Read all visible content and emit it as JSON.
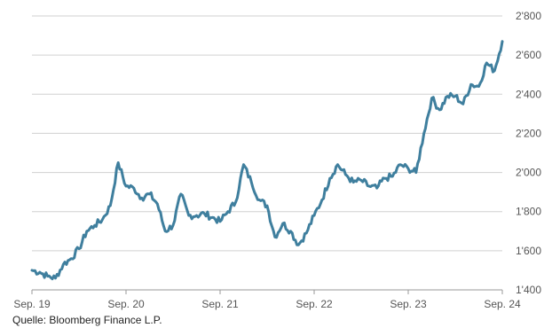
{
  "chart_data": {
    "type": "line",
    "title": "",
    "xlabel": "",
    "ylabel": "",
    "x_tick_labels": [
      "Sep. 19",
      "Sep. 20",
      "Sep. 21",
      "Sep. 22",
      "Sep. 23",
      "Sep. 24"
    ],
    "y_tick_labels": [
      "1'400",
      "1'600",
      "1'800",
      "2'000",
      "2'200",
      "2'400",
      "2'600",
      "2'800"
    ],
    "ylim": [
      1400,
      2800
    ],
    "y_axis_side": "right",
    "grid": "horizontal",
    "line_color": "#3f7f9e",
    "series": [
      {
        "x": [
          "2019-09",
          "2019-10",
          "2019-11",
          "2019-12",
          "2020-01",
          "2020-02",
          "2020-03",
          "2020-04",
          "2020-05",
          "2020-06",
          "2020-07",
          "2020-08",
          "2020-09",
          "2020-10",
          "2020-11",
          "2020-12",
          "2021-01",
          "2021-02",
          "2021-03",
          "2021-04",
          "2021-05",
          "2021-06",
          "2021-07",
          "2021-08",
          "2021-09",
          "2021-10",
          "2021-11",
          "2021-12",
          "2022-01",
          "2022-02",
          "2022-03",
          "2022-04",
          "2022-05",
          "2022-06",
          "2022-07",
          "2022-08",
          "2022-09",
          "2022-10",
          "2022-11",
          "2022-12",
          "2023-01",
          "2023-02",
          "2023-03",
          "2023-04",
          "2023-05",
          "2023-06",
          "2023-07",
          "2023-08",
          "2023-09",
          "2023-10",
          "2023-11",
          "2023-12",
          "2024-01",
          "2024-02",
          "2024-03",
          "2024-04",
          "2024-05",
          "2024-06",
          "2024-07",
          "2024-08",
          "2024-09"
        ],
        "values": [
          1500,
          1490,
          1470,
          1460,
          1530,
          1560,
          1610,
          1700,
          1730,
          1760,
          1830,
          2050,
          1930,
          1920,
          1870,
          1890,
          1840,
          1700,
          1730,
          1890,
          1780,
          1780,
          1790,
          1770,
          1750,
          1800,
          1850,
          2040,
          1950,
          1860,
          1830,
          1670,
          1740,
          1700,
          1630,
          1690,
          1780,
          1860,
          1970,
          2040,
          1990,
          1950,
          1960,
          1930,
          1920,
          1970,
          1980,
          2040,
          2020,
          2000,
          2200,
          2380,
          2320,
          2390,
          2390,
          2350,
          2450,
          2440,
          2560,
          2520,
          2670
        ]
      }
    ]
  },
  "source": "Quelle: Bloomberg Finance L.P."
}
